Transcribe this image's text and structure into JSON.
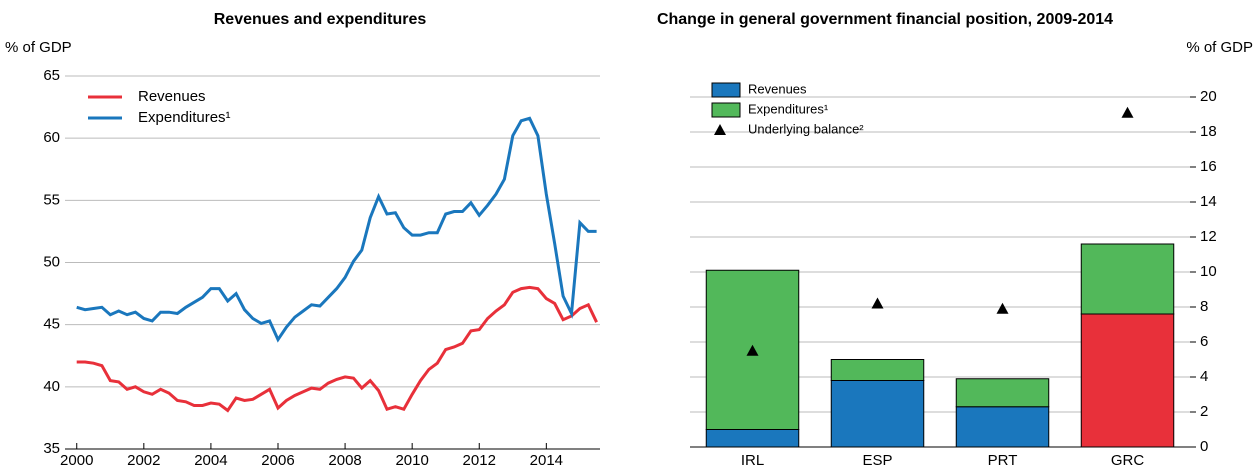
{
  "chart_data": [
    {
      "type": "line",
      "title": "Revenues and expenditures",
      "y_label": "% of GDP",
      "x": [
        2000.0,
        2000.25,
        2000.5,
        2000.75,
        2001.0,
        2001.25,
        2001.5,
        2001.75,
        2002.0,
        2002.25,
        2002.5,
        2002.75,
        2003.0,
        2003.25,
        2003.5,
        2003.75,
        2004.0,
        2004.25,
        2004.5,
        2004.75,
        2005.0,
        2005.25,
        2005.5,
        2005.75,
        2006.0,
        2006.25,
        2006.5,
        2006.75,
        2007.0,
        2007.25,
        2007.5,
        2007.75,
        2008.0,
        2008.25,
        2008.5,
        2008.75,
        2009.0,
        2009.25,
        2009.5,
        2009.75,
        2010.0,
        2010.25,
        2010.5,
        2010.75,
        2011.0,
        2011.25,
        2011.5,
        2011.75,
        2012.0,
        2012.25,
        2012.5,
        2012.75,
        2013.0,
        2013.25,
        2013.5,
        2013.75,
        2014.0,
        2014.25,
        2014.5,
        2014.75,
        2015.0,
        2015.25,
        2015.5
      ],
      "series": [
        {
          "name": "Revenues",
          "color": "#e8303a",
          "values": [
            42.0,
            42.0,
            41.9,
            41.7,
            40.5,
            40.4,
            39.8,
            40.0,
            39.6,
            39.4,
            39.8,
            39.5,
            38.9,
            38.8,
            38.5,
            38.5,
            38.7,
            38.6,
            38.1,
            39.1,
            38.9,
            39.0,
            39.4,
            39.8,
            38.3,
            38.9,
            39.3,
            39.6,
            39.9,
            39.8,
            40.3,
            40.6,
            40.8,
            40.7,
            39.9,
            40.5,
            39.7,
            38.2,
            38.4,
            38.2,
            39.4,
            40.5,
            41.4,
            41.9,
            43.0,
            43.2,
            43.5,
            44.5,
            44.6,
            45.5,
            46.1,
            46.6,
            47.6,
            47.9,
            48.0,
            47.9,
            47.1,
            46.7,
            45.4,
            45.7,
            46.3,
            46.6,
            45.2
          ]
        },
        {
          "name": "Expenditures¹",
          "color": "#1a77bd",
          "values": [
            46.4,
            46.2,
            46.3,
            46.4,
            45.8,
            46.1,
            45.8,
            46.0,
            45.5,
            45.3,
            46.0,
            46.0,
            45.9,
            46.4,
            46.8,
            47.2,
            47.9,
            47.9,
            46.9,
            47.5,
            46.2,
            45.5,
            45.1,
            45.3,
            43.8,
            44.8,
            45.6,
            46.1,
            46.6,
            46.5,
            47.2,
            47.9,
            48.8,
            50.1,
            51.0,
            53.6,
            55.3,
            53.9,
            54.0,
            52.8,
            52.2,
            52.2,
            52.4,
            52.4,
            53.9,
            54.1,
            54.1,
            54.8,
            53.8,
            54.6,
            55.5,
            56.7,
            60.2,
            61.4,
            61.6,
            60.2,
            55.5,
            51.5,
            47.3,
            45.9,
            53.2,
            52.5,
            52.5
          ]
        }
      ],
      "xlim": [
        1999.65,
        2015.6
      ],
      "xticks": [
        2000,
        2002,
        2004,
        2006,
        2008,
        2010,
        2012,
        2014
      ],
      "ylim": [
        35,
        65
      ],
      "yticks": [
        35,
        40,
        45,
        50,
        55,
        60,
        65
      ],
      "grid": true
    },
    {
      "type": "bar",
      "title": "Change in general government financial position, 2009-2014",
      "y_label": "% of GDP",
      "categories": [
        "IRL",
        "ESP",
        "PRT",
        "GRC"
      ],
      "stacked": true,
      "series": [
        {
          "name": "Revenues",
          "color": "#1a77bd",
          "colors": [
            "#1a77bd",
            "#1a77bd",
            "#1a77bd",
            "#e8303a"
          ],
          "values": [
            1.0,
            3.8,
            2.3,
            7.6
          ]
        },
        {
          "name": "Expenditures¹",
          "color": "#52b85a",
          "values": [
            9.1,
            1.2,
            1.6,
            4.0
          ]
        },
        {
          "name": "Underlying balance²",
          "color": "#000000",
          "type": "scatter",
          "values": [
            5.5,
            8.2,
            7.9,
            19.1
          ]
        }
      ],
      "ylim": [
        0,
        20
      ],
      "yticks": [
        0,
        2,
        4,
        6,
        8,
        10,
        12,
        14,
        16,
        18,
        20
      ],
      "grid": true
    }
  ]
}
